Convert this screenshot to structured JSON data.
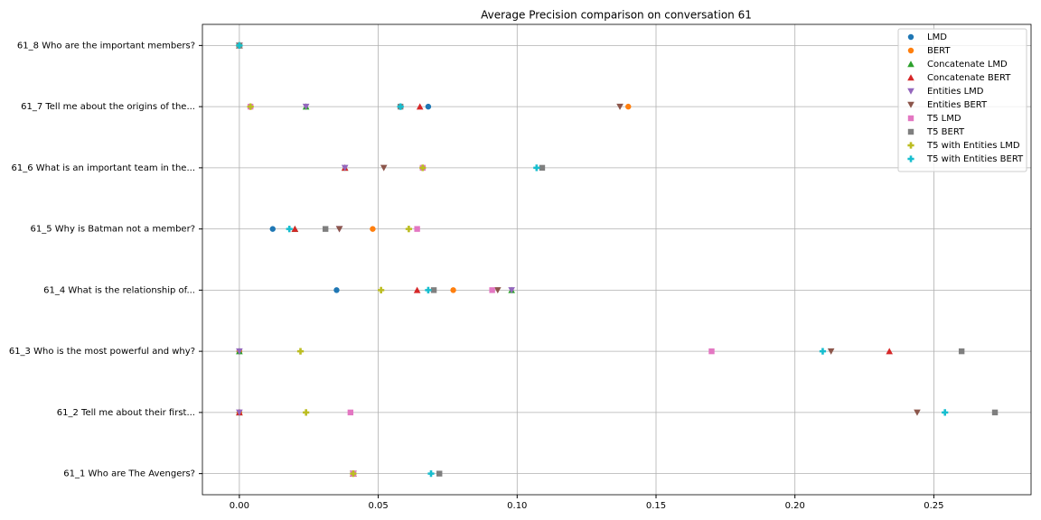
{
  "chart_data": {
    "type": "scatter",
    "title": "Average Precision comparison on conversation 61",
    "categories": [
      "61_1 Who are The Avengers?",
      "61_2 Tell me about their first...",
      "61_3 Who is the most powerful and why?",
      "61_4 What is the relationship of...",
      "61_5 Why is Batman not a member?",
      "61_6 What is an important team in the...",
      "61_7 Tell me about the origins of the...",
      "61_8 Who are the important members?"
    ],
    "series": [
      {
        "name": "LMD",
        "color": "#1f77b4",
        "marker": "circle",
        "values": [
          0.041,
          0,
          0,
          0.035,
          0.012,
          0.066,
          0.068,
          0
        ]
      },
      {
        "name": "BERT",
        "color": "#ff7f0e",
        "marker": "circle",
        "values": [
          0.041,
          0,
          0,
          0.077,
          0.048,
          0.066,
          0.14,
          0
        ]
      },
      {
        "name": "Concatenate LMD",
        "color": "#2ca02c",
        "marker": "triangle-up",
        "values": [
          0.041,
          0,
          0,
          0.098,
          0.02,
          0.038,
          0.024,
          0
        ]
      },
      {
        "name": "Concatenate BERT",
        "color": "#d62728",
        "marker": "triangle-up",
        "values": [
          0.041,
          0,
          0.234,
          0.064,
          0.02,
          0.038,
          0.065,
          0
        ]
      },
      {
        "name": "Entities LMD",
        "color": "#9467bd",
        "marker": "triangle-down",
        "values": [
          0.041,
          0,
          0,
          0.098,
          0.036,
          0.038,
          0.024,
          0
        ]
      },
      {
        "name": "Entities BERT",
        "color": "#8c564b",
        "marker": "triangle-down",
        "values": [
          0.041,
          0.244,
          0.213,
          0.093,
          0.036,
          0.052,
          0.137,
          0
        ]
      },
      {
        "name": "T5 LMD",
        "color": "#e377c2",
        "marker": "square",
        "values": [
          0.041,
          0.04,
          0.17,
          0.091,
          0.064,
          0.066,
          0.004,
          0
        ]
      },
      {
        "name": "T5 BERT",
        "color": "#7f7f7f",
        "marker": "square",
        "values": [
          0.072,
          0.272,
          0.26,
          0.07,
          0.031,
          0.109,
          0.058,
          0
        ]
      },
      {
        "name": "T5 with Entities LMD",
        "color": "#bcbd22",
        "marker": "plus",
        "values": [
          0.041,
          0.024,
          0.022,
          0.051,
          0.061,
          0.066,
          0.004,
          0
        ]
      },
      {
        "name": "T5 with Entities BERT",
        "color": "#17becf",
        "marker": "plus",
        "values": [
          0.069,
          0.254,
          0.21,
          0.068,
          0.018,
          0.107,
          0.058,
          0
        ]
      }
    ],
    "xlim": [
      -0.0133,
      0.285
    ],
    "xticks": [
      {
        "value": 0,
        "label": "0.00"
      },
      {
        "value": 0.05,
        "label": "0.05"
      },
      {
        "value": 0.1,
        "label": "0.10"
      },
      {
        "value": 0.15,
        "label": "0.15"
      },
      {
        "value": 0.2,
        "label": "0.20"
      },
      {
        "value": 0.25,
        "label": "0.25"
      }
    ],
    "grid": true,
    "legend": "upper right"
  }
}
